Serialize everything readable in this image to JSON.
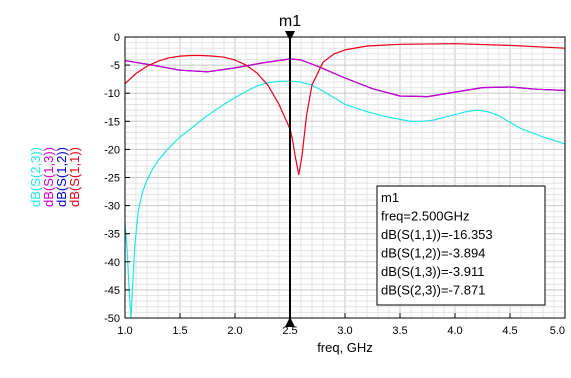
{
  "chart_data": {
    "type": "line",
    "xlabel": "freq, GHz",
    "xlim": [
      1.0,
      5.0
    ],
    "ylim": [
      -50,
      0
    ],
    "xticks": [
      "1.0",
      "1.5",
      "2.0",
      "2.5",
      "3.0",
      "3.5",
      "4.0",
      "4.5",
      "5.0"
    ],
    "yticks": [
      "0",
      "-5",
      "-10",
      "-15",
      "-20",
      "-25",
      "-30",
      "-35",
      "-40",
      "-45",
      "-50"
    ],
    "grid": true,
    "series": [
      {
        "name": "dB(S(1,1))",
        "color": "#e8001a",
        "x": [
          1.0,
          1.1,
          1.2,
          1.3,
          1.4,
          1.5,
          1.6,
          1.7,
          1.8,
          1.9,
          2.0,
          2.1,
          2.2,
          2.3,
          2.4,
          2.5,
          2.52,
          2.55,
          2.58,
          2.61,
          2.65,
          2.7,
          2.8,
          2.9,
          3.0,
          3.2,
          3.5,
          4.0,
          4.5,
          5.0
        ],
        "y": [
          -8.3,
          -6.5,
          -5.2,
          -4.3,
          -3.7,
          -3.4,
          -3.3,
          -3.3,
          -3.4,
          -3.6,
          -4.1,
          -5.0,
          -6.4,
          -8.6,
          -12.0,
          -16.353,
          -18.0,
          -21.5,
          -24.5,
          -21.0,
          -14.0,
          -8.5,
          -4.5,
          -3.0,
          -2.3,
          -1.6,
          -1.3,
          -1.2,
          -1.5,
          -2.0
        ]
      },
      {
        "name": "dB(S(1,2))",
        "color": "#0000cc",
        "x": [
          1.0,
          1.25,
          1.5,
          1.75,
          2.0,
          2.25,
          2.5,
          2.6,
          2.75,
          3.0,
          3.25,
          3.5,
          3.75,
          4.0,
          4.25,
          4.5,
          4.75,
          5.0
        ],
        "y": [
          -4.2,
          -5.0,
          -5.9,
          -6.2,
          -5.5,
          -4.6,
          -3.894,
          -4.1,
          -5.2,
          -7.3,
          -9.2,
          -10.5,
          -10.6,
          -9.8,
          -9.0,
          -8.9,
          -9.3,
          -9.5
        ],
        "hidden_behind": true
      },
      {
        "name": "dB(S(1,3))",
        "color": "#cc00cc",
        "x": [
          1.0,
          1.25,
          1.5,
          1.75,
          2.0,
          2.25,
          2.5,
          2.6,
          2.75,
          3.0,
          3.25,
          3.5,
          3.75,
          4.0,
          4.25,
          4.5,
          4.75,
          5.0
        ],
        "y": [
          -4.2,
          -5.0,
          -5.9,
          -6.2,
          -5.5,
          -4.6,
          -3.911,
          -4.1,
          -5.2,
          -7.3,
          -9.2,
          -10.5,
          -10.6,
          -9.8,
          -9.0,
          -8.9,
          -9.3,
          -9.5
        ]
      },
      {
        "name": "dB(S(2,3))",
        "color": "#22e6e6",
        "x": [
          1.0,
          1.02,
          1.04,
          1.055,
          1.07,
          1.09,
          1.12,
          1.16,
          1.2,
          1.25,
          1.3,
          1.4,
          1.5,
          1.6,
          1.7,
          1.8,
          1.9,
          2.0,
          2.1,
          2.2,
          2.3,
          2.4,
          2.5,
          2.6,
          2.7,
          2.8,
          2.9,
          3.0,
          3.2,
          3.4,
          3.6,
          3.7,
          3.8,
          4.0,
          4.1,
          4.2,
          4.3,
          4.4,
          4.5,
          4.6,
          4.8,
          5.0
        ],
        "y": [
          -33,
          -38,
          -46,
          -50,
          -44,
          -37,
          -31,
          -27.5,
          -25.5,
          -23.5,
          -22,
          -19.7,
          -17.8,
          -16.3,
          -14.7,
          -13.3,
          -12,
          -10.8,
          -9.7,
          -8.7,
          -8.1,
          -7.9,
          -7.871,
          -8,
          -8.6,
          -9.6,
          -10.8,
          -12,
          -13.3,
          -14.3,
          -15,
          -15,
          -14.8,
          -13.8,
          -13.3,
          -13,
          -13.3,
          -14,
          -15.2,
          -16.3,
          -17.8,
          -19
        ]
      }
    ],
    "marker": {
      "name": "m1",
      "x": 2.5,
      "lines": [
        "m1",
        "freq=2.500GHz",
        "dB(S(1,1))=-16.353",
        "dB(S(1,2))=-3.894",
        "dB(S(1,3))=-3.911",
        "dB(S(2,3))=-7.871"
      ]
    },
    "ylabels": [
      {
        "text": "dB(S(2,3))",
        "color": "#22e6e6"
      },
      {
        "text": "dB(S(1,3))",
        "color": "#cc00cc"
      },
      {
        "text": "dB(S(1,2))",
        "color": "#0000cc"
      },
      {
        "text": "dB(S(1,1))",
        "color": "#e8001a"
      }
    ]
  }
}
